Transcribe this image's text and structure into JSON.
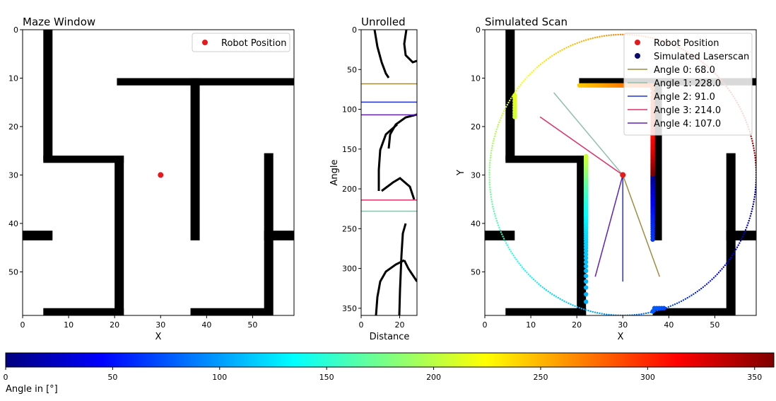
{
  "chart_data": [
    {
      "type": "heatmap",
      "title": "Maze Window",
      "xlabel": "X",
      "ylabel": "Y",
      "xlim": [
        0,
        59
      ],
      "ylim": [
        59,
        0
      ],
      "xticks": [
        "0",
        "10",
        "20",
        "30",
        "40",
        "50"
      ],
      "yticks": [
        "0",
        "10",
        "20",
        "30",
        "40",
        "50"
      ],
      "walls": [
        {
          "x0": 4.5,
          "x1": 6.5,
          "y0": 0,
          "y1": 27
        },
        {
          "x0": 4.5,
          "x1": 22,
          "y0": 26,
          "y1": 27.5
        },
        {
          "x0": 20,
          "x1": 22,
          "y0": 26,
          "y1": 59
        },
        {
          "x0": 4.5,
          "x1": 22,
          "y0": 57.5,
          "y1": 59
        },
        {
          "x0": 20.5,
          "x1": 59,
          "y0": 10,
          "y1": 11.5
        },
        {
          "x0": 36.5,
          "x1": 38.5,
          "y0": 10,
          "y1": 43.5
        },
        {
          "x0": 36.5,
          "x1": 54,
          "y0": 57.5,
          "y1": 59
        },
        {
          "x0": 52.5,
          "x1": 54.5,
          "y0": 25.5,
          "y1": 59
        },
        {
          "x0": 52.5,
          "x1": 59,
          "y0": 41.5,
          "y1": 43.5
        },
        {
          "x0": 0,
          "x1": 6.5,
          "y0": 41.5,
          "y1": 43.5
        }
      ],
      "robot": {
        "x": 30,
        "y": 30,
        "color": "#e41a1c"
      },
      "legend": {
        "position": "top-right",
        "entries": [
          "Robot Position"
        ]
      }
    },
    {
      "type": "heatmap",
      "title": "Unrolled",
      "xlabel": "Distance",
      "ylabel": "Angle",
      "xlim": [
        0,
        29
      ],
      "ylim": [
        359,
        0
      ],
      "xticks": [
        "0",
        "20"
      ],
      "yticks": [
        "0",
        "50",
        "100",
        "150",
        "200",
        "250",
        "300",
        "350"
      ],
      "lines": [
        {
          "angle": 68,
          "color": "#a08c40"
        },
        {
          "angle": 228,
          "color": "#8fbfaa"
        },
        {
          "angle": 91,
          "color": "#2233dd"
        },
        {
          "angle": 214,
          "color": "#e0306a"
        },
        {
          "angle": 107,
          "color": "#6020bb"
        }
      ]
    },
    {
      "type": "scatter",
      "title": "Simulated Scan",
      "xlabel": "X",
      "ylabel": "Y",
      "xlim": [
        0,
        59
      ],
      "ylim": [
        59,
        0
      ],
      "xticks": [
        "0",
        "10",
        "20",
        "30",
        "40",
        "50"
      ],
      "yticks": [
        "0",
        "10",
        "20",
        "30",
        "40",
        "50"
      ],
      "robot": {
        "x": 30,
        "y": 30
      },
      "scan_radius": 29,
      "legend": {
        "position": "top-right",
        "entries": [
          {
            "label": "Robot Position",
            "kind": "dot",
            "color": "#e41a1c"
          },
          {
            "label": "Simulated Laserscan",
            "kind": "dot",
            "color": "#0b0b6e"
          },
          {
            "label": "Angle 0: 68.0",
            "kind": "line",
            "color": "#a08c40"
          },
          {
            "label": "Angle 1: 228.0",
            "kind": "line",
            "color": "#8fbfaa"
          },
          {
            "label": "Angle 2: 91.0",
            "kind": "line",
            "color": "#2233dd"
          },
          {
            "label": "Angle 3: 214.0",
            "kind": "line",
            "color": "#e0306a"
          },
          {
            "label": "Angle 4: 107.0",
            "kind": "line",
            "color": "#6020bb"
          }
        ]
      },
      "rays": [
        {
          "angle": 68.0,
          "x1": 38,
          "y1": 51,
          "color": "#a08c40"
        },
        {
          "angle": 228.0,
          "x1": 15,
          "y1": 13,
          "color": "#8fbfaa"
        },
        {
          "angle": 91.0,
          "x1": 30,
          "y1": 52,
          "color": "#2233dd"
        },
        {
          "angle": 214.0,
          "x1": 12,
          "y1": 18,
          "color": "#e0306a"
        },
        {
          "angle": 107.0,
          "x1": 24,
          "y1": 51,
          "color": "#6020bb"
        }
      ]
    },
    {
      "type": "colorbar",
      "label": "Angle in [°]",
      "range": [
        0,
        359
      ],
      "ticks": [
        "0",
        "50",
        "100",
        "150",
        "200",
        "250",
        "300",
        "350"
      ],
      "colormap": "jet"
    }
  ]
}
